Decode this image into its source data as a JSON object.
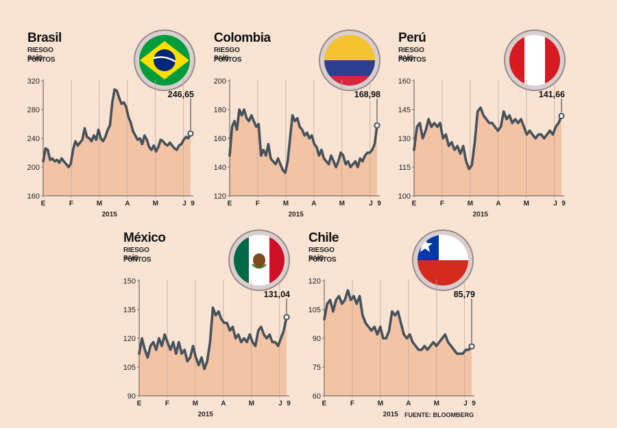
{
  "source": "FUENTE: BLOOMBERG",
  "colors": {
    "line": "#45525b",
    "fill": "#f3c3a6",
    "background": "#f9e4d4"
  },
  "chart_data": [
    {
      "type": "area",
      "title": "Brasil",
      "subtitle": "RIESGO PAÍS",
      "unit": "PUNTOS",
      "flag": "brazil-flag-icon",
      "year": "2015",
      "months": [
        "E",
        "F",
        "M",
        "A",
        "M",
        "J",
        "9"
      ],
      "ylim": [
        160,
        320
      ],
      "yticks": [
        "160",
        "200",
        "240",
        "280",
        "320"
      ],
      "last_label": "246,65",
      "values": [
        208,
        226,
        224,
        210,
        212,
        208,
        210,
        206,
        212,
        208,
        204,
        200,
        205,
        225,
        236,
        230,
        234,
        238,
        254,
        242,
        240,
        236,
        244,
        238,
        252,
        240,
        236,
        242,
        252,
        258,
        290,
        308,
        306,
        296,
        288,
        290,
        284,
        270,
        262,
        250,
        244,
        238,
        240,
        232,
        244,
        238,
        228,
        224,
        230,
        222,
        228,
        238,
        236,
        232,
        230,
        234,
        230,
        226,
        224,
        230,
        232,
        238,
        242,
        240,
        246.65
      ]
    },
    {
      "type": "area",
      "title": "Colombia",
      "subtitle": "RIESGO PAÍS",
      "unit": "PUNTOS",
      "flag": "colombia-flag-icon",
      "year": "2015",
      "months": [
        "E",
        "F",
        "M",
        "A",
        "M",
        "J",
        "9"
      ],
      "ylim": [
        120,
        200
      ],
      "yticks": [
        "120",
        "140",
        "160",
        "180",
        "200"
      ],
      "last_label": "168,98",
      "values": [
        148,
        168,
        172,
        166,
        180,
        176,
        180,
        174,
        172,
        176,
        172,
        168,
        170,
        148,
        152,
        148,
        156,
        146,
        144,
        142,
        146,
        142,
        138,
        136,
        144,
        160,
        176,
        172,
        174,
        168,
        166,
        162,
        164,
        160,
        162,
        156,
        154,
        148,
        152,
        146,
        144,
        142,
        148,
        144,
        140,
        144,
        150,
        148,
        142,
        144,
        140,
        142,
        144,
        140,
        146,
        144,
        148,
        150,
        150,
        152,
        156,
        168.98
      ]
    },
    {
      "type": "area",
      "title": "Perú",
      "subtitle": "RIESGO PAÍS",
      "unit": "PUNTOS",
      "flag": "peru-flag-icon",
      "year": "2015",
      "months": [
        "E",
        "F",
        "M",
        "A",
        "M",
        "J",
        "9"
      ],
      "ylim": [
        100,
        160
      ],
      "yticks": [
        "100",
        "115",
        "130",
        "145",
        "160"
      ],
      "last_label": "141,66",
      "values": [
        124,
        136,
        138,
        130,
        134,
        140,
        136,
        138,
        136,
        138,
        130,
        132,
        126,
        128,
        124,
        126,
        122,
        126,
        118,
        114,
        116,
        128,
        144,
        146,
        142,
        140,
        138,
        138,
        136,
        134,
        136,
        144,
        140,
        142,
        138,
        140,
        138,
        140,
        136,
        132,
        134,
        132,
        130,
        132,
        132,
        130,
        132,
        134,
        132,
        136,
        138,
        141.66
      ]
    },
    {
      "type": "area",
      "title": "México",
      "subtitle": "RIESGO PAÍS",
      "unit": "PUNTOS",
      "flag": "mexico-flag-icon",
      "year": "2015",
      "months": [
        "E",
        "F",
        "M",
        "A",
        "M",
        "J",
        "9"
      ],
      "ylim": [
        90,
        150
      ],
      "yticks": [
        "90",
        "105",
        "120",
        "135",
        "150"
      ],
      "last_label": "131,04",
      "values": [
        112,
        120,
        114,
        110,
        116,
        118,
        114,
        120,
        116,
        122,
        118,
        114,
        118,
        112,
        118,
        112,
        114,
        108,
        110,
        116,
        110,
        106,
        110,
        104,
        108,
        118,
        136,
        132,
        134,
        130,
        128,
        128,
        124,
        126,
        120,
        122,
        118,
        120,
        118,
        122,
        118,
        116,
        124,
        126,
        122,
        120,
        122,
        118,
        118,
        116,
        120,
        124,
        131.04
      ]
    },
    {
      "type": "area",
      "title": "Chile",
      "subtitle": "RIESGO PAÍS",
      "unit": "PUNTOS",
      "flag": "chile-flag-icon",
      "year": "2015",
      "months": [
        "E",
        "F",
        "M",
        "A",
        "M",
        "J",
        "9"
      ],
      "ylim": [
        60,
        120
      ],
      "yticks": [
        "60",
        "75",
        "90",
        "105",
        "120"
      ],
      "last_label": "85,79",
      "values": [
        100,
        108,
        110,
        104,
        110,
        112,
        108,
        110,
        115,
        110,
        112,
        108,
        112,
        102,
        98,
        96,
        94,
        96,
        92,
        96,
        90,
        90,
        94,
        104,
        102,
        104,
        98,
        92,
        90,
        92,
        88,
        86,
        84,
        84,
        86,
        84,
        86,
        88,
        86,
        88,
        90,
        92,
        88,
        86,
        84,
        82,
        82,
        82,
        84,
        84,
        85.79
      ]
    }
  ]
}
